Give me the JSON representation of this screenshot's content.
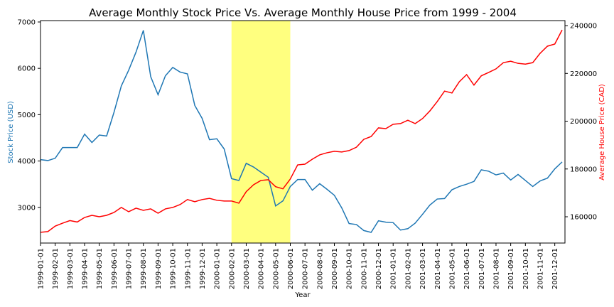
{
  "chart_data": {
    "type": "line",
    "title": "Average Monthly Stock Price  Vs. Average Monthly House Price from 1999 - 2004",
    "x_label": "Year",
    "y_label": "Stock Price (USD)",
    "y2_label": "Average House Price (CAD)",
    "categories": [
      "1999-01-01",
      null,
      "1999-02-01",
      null,
      "1999-03-01",
      null,
      "1999-04-01",
      null,
      "1999-05-01",
      null,
      "1999-06-01",
      null,
      "1999-07-01",
      null,
      "1999-08-01",
      null,
      "1999-09-01",
      null,
      "1999-10-01",
      null,
      "1999-11-01",
      null,
      "1999-12-01",
      null,
      "2000-01-01",
      null,
      "2000-02-01",
      null,
      "2000-03-01",
      null,
      "2000-04-01",
      null,
      "2000-05-01",
      null,
      "2000-06-01",
      null,
      "2000-07-01",
      null,
      "2000-08-01",
      null,
      "2000-09-01",
      null,
      "2000-10-01",
      null,
      "2000-11-01",
      null,
      "2000-12-01",
      null,
      "2001-01-01",
      null,
      "2001-02-01",
      null,
      "2001-03-01",
      null,
      "2001-04-01",
      null,
      "2001-05-01",
      null,
      "2001-06-01",
      null,
      "2001-07-01",
      null,
      "2001-08-01",
      null,
      "2001-09-01",
      null,
      "2001-10-01",
      null,
      "2001-11-01",
      null,
      "2001-12-01",
      null
    ],
    "series": [
      {
        "name": "Stock Price (USD)",
        "color": "#1f77b4",
        "axis": "y",
        "values": [
          4030,
          4010,
          4060,
          4290,
          4290,
          4290,
          4580,
          4400,
          4560,
          4540,
          5050,
          5620,
          5960,
          6350,
          6820,
          5820,
          5430,
          5840,
          6020,
          5920,
          5880,
          5200,
          4920,
          4460,
          4480,
          4260,
          3620,
          3580,
          3950,
          3870,
          3760,
          3650,
          3030,
          3140,
          3450,
          3600,
          3600,
          3370,
          3510,
          3390,
          3260,
          2990,
          2650,
          2630,
          2500,
          2460,
          2710,
          2680,
          2670,
          2510,
          2540,
          2660,
          2850,
          3050,
          3180,
          3190,
          3380,
          3450,
          3500,
          3560,
          3810,
          3780,
          3700,
          3740,
          3590,
          3710,
          3580,
          3450,
          3570,
          3630,
          3830,
          3980
        ]
      },
      {
        "name": "Average House Price (CAD)",
        "color": "#ff0000",
        "axis": "y2",
        "values": [
          153500,
          153800,
          156100,
          157300,
          158400,
          157800,
          159700,
          160600,
          160000,
          160600,
          161800,
          163900,
          162100,
          163600,
          162700,
          163300,
          161500,
          163300,
          163900,
          165100,
          167200,
          166300,
          167200,
          167700,
          166900,
          166600,
          166600,
          165700,
          170500,
          173400,
          175200,
          175500,
          172600,
          171700,
          175800,
          181700,
          182000,
          184100,
          185900,
          186800,
          187400,
          187100,
          187700,
          189100,
          192400,
          193600,
          197200,
          196900,
          198700,
          199000,
          200400,
          199000,
          201100,
          204300,
          208200,
          212600,
          211800,
          216500,
          219500,
          215100,
          219000,
          220400,
          221900,
          224500,
          225100,
          224200,
          223900,
          224500,
          228400,
          231400,
          232300,
          238200
        ]
      }
    ],
    "highlight": {
      "from": "2000-02-01",
      "to": "2000-06-01",
      "color": "#ffff00"
    },
    "ylim": [
      2230,
      7030
    ],
    "yticks": [
      3000,
      4000,
      5000,
      6000,
      7000
    ],
    "y2lim": [
      149000,
      242100
    ],
    "y2ticks": [
      160000,
      180000,
      200000,
      220000,
      240000
    ]
  }
}
